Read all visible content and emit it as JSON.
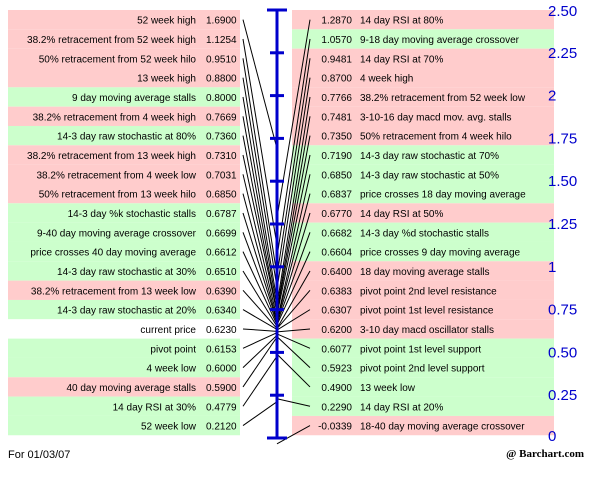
{
  "footer": {
    "date": "For 01/03/07",
    "brand": "@ Barchart.com"
  },
  "colors": {
    "support": "#ccffcc",
    "resistance": "#ffcccc",
    "axis": "#0000cc",
    "line": "#000000"
  },
  "chart_data": {
    "type": "pivot-ladder",
    "title": "",
    "current_price": 0.623,
    "yaxis": {
      "min": 0,
      "max": 2.5,
      "ticks": [
        "2.50",
        "2.25",
        "2",
        "1.75",
        "1.50",
        "1.25",
        "1",
        "0.75",
        "0.50",
        "0.25",
        "0"
      ]
    },
    "left": [
      {
        "label": "52 week high",
        "value": "1.6900",
        "bg": "resistance"
      },
      {
        "label": "38.2% retracement from 52 week high",
        "value": "1.1254",
        "bg": "resistance"
      },
      {
        "label": "50% retracement from 52 week hilo",
        "value": "0.9510",
        "bg": "resistance"
      },
      {
        "label": "13 week high",
        "value": "0.8800",
        "bg": "resistance"
      },
      {
        "label": "9 day moving average stalls",
        "value": "0.8000",
        "bg": "support"
      },
      {
        "label": "38.2% retracement from 4 week high",
        "value": "0.7669",
        "bg": "resistance"
      },
      {
        "label": "14-3 day raw stochastic at 80%",
        "value": "0.7360",
        "bg": "support"
      },
      {
        "label": "38.2% retracement from 13 week high",
        "value": "0.7310",
        "bg": "resistance"
      },
      {
        "label": "38.2% retracement from 4 week low",
        "value": "0.7031",
        "bg": "resistance"
      },
      {
        "label": "50% retracement from 13 week hilo",
        "value": "0.6850",
        "bg": "resistance"
      },
      {
        "label": "14-3 day %k stochastic stalls",
        "value": "0.6787",
        "bg": "support"
      },
      {
        "label": "9-40 day moving average crossover",
        "value": "0.6699",
        "bg": "support"
      },
      {
        "label": "price crosses 40 day moving average",
        "value": "0.6612",
        "bg": "support"
      },
      {
        "label": "14-3 day raw stochastic at 30%",
        "value": "0.6510",
        "bg": "support"
      },
      {
        "label": "38.2% retracement from 13 week low",
        "value": "0.6390",
        "bg": "resistance"
      },
      {
        "label": "14-3 day raw stochastic at 20%",
        "value": "0.6340",
        "bg": "support"
      },
      {
        "label": "current price",
        "value": "0.6230",
        "bg": "none"
      },
      {
        "label": "pivot point",
        "value": "0.6153",
        "bg": "support"
      },
      {
        "label": "4 week low",
        "value": "0.6000",
        "bg": "support"
      },
      {
        "label": "40 day moving average stalls",
        "value": "0.5900",
        "bg": "resistance"
      },
      {
        "label": "14 day RSI at 30%",
        "value": "0.4779",
        "bg": "support"
      },
      {
        "label": "52 week low",
        "value": "0.2120",
        "bg": "support"
      }
    ],
    "right": [
      {
        "label": "14 day RSI at 80%",
        "value": "1.2870",
        "bg": "resistance"
      },
      {
        "label": "9-18 day moving average crossover",
        "value": "1.0570",
        "bg": "support"
      },
      {
        "label": "14 day RSI at 70%",
        "value": "0.9481",
        "bg": "resistance"
      },
      {
        "label": "4 week high",
        "value": "0.8700",
        "bg": "resistance"
      },
      {
        "label": "38.2% retracement from 52 week low",
        "value": "0.7766",
        "bg": "resistance"
      },
      {
        "label": "3-10-16 day macd mov. avg. stalls",
        "value": "0.7481",
        "bg": "resistance"
      },
      {
        "label": "50% retracement from 4 week hilo",
        "value": "0.7350",
        "bg": "resistance"
      },
      {
        "label": "14-3 day raw stochastic at 70%",
        "value": "0.7190",
        "bg": "support"
      },
      {
        "label": "14-3 day raw stochastic at 50%",
        "value": "0.6850",
        "bg": "support"
      },
      {
        "label": "price crosses 18 day moving average",
        "value": "0.6837",
        "bg": "support"
      },
      {
        "label": "14 day RSI at 50%",
        "value": "0.6770",
        "bg": "resistance"
      },
      {
        "label": "14-3 day %d stochastic stalls",
        "value": "0.6682",
        "bg": "support"
      },
      {
        "label": "price crosses 9 day moving average",
        "value": "0.6604",
        "bg": "support"
      },
      {
        "label": "18 day moving average stalls",
        "value": "0.6400",
        "bg": "resistance"
      },
      {
        "label": "pivot point 2nd level resistance",
        "value": "0.6383",
        "bg": "resistance"
      },
      {
        "label": "pivot point 1st level resistance",
        "value": "0.6307",
        "bg": "resistance"
      },
      {
        "label": "3-10 day macd oscillator stalls",
        "value": "0.6200",
        "bg": "resistance"
      },
      {
        "label": "pivot point 1st level support",
        "value": "0.6077",
        "bg": "support"
      },
      {
        "label": "pivot point 2nd level support",
        "value": "0.5923",
        "bg": "support"
      },
      {
        "label": "13 week low",
        "value": "0.4900",
        "bg": "support"
      },
      {
        "label": "14 day RSI at 20%",
        "value": "0.2290",
        "bg": "support"
      },
      {
        "label": "18-40 day moving average crossover",
        "value": "-0.0339",
        "bg": "resistance"
      }
    ]
  }
}
